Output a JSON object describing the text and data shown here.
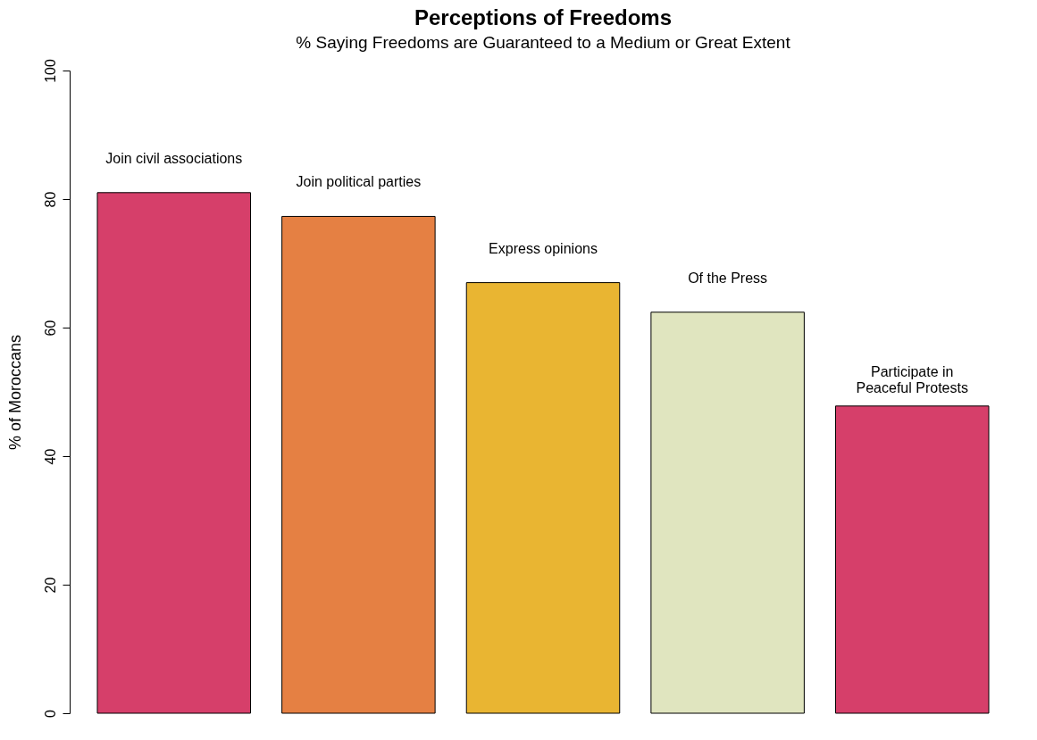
{
  "chart_data": {
    "type": "bar",
    "title": "Perceptions of Freedoms",
    "subtitle": "% Saying Freedoms are Guaranteed to a Medium or Great Extent",
    "ylabel": "% of Moroccans",
    "categories": [
      "Join civil associations",
      "Join political parties",
      "Express opinions",
      "Of the Press",
      "Participate in\nPeaceful Protests"
    ],
    "values": [
      81,
      77.3,
      67,
      62.4,
      47.8
    ],
    "colors": [
      "#d63f6a",
      "#e58043",
      "#e9b532",
      "#e0e5bf",
      "#d63f6a"
    ],
    "ylim": [
      0,
      100
    ],
    "yticks": [
      0,
      20,
      40,
      60,
      80,
      100
    ],
    "grid": false
  }
}
